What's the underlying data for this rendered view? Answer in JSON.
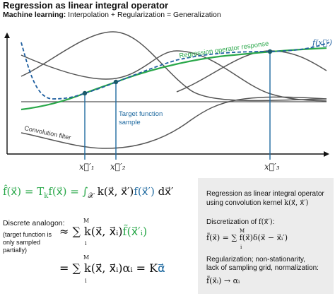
{
  "header": {
    "title": "Regression as linear integral operator",
    "subtitle_bold": "Machine learning:",
    "subtitle_rest": " Interpolation + Regularization = Generalization"
  },
  "plot": {
    "curve_label": "f(x⃗′)",
    "green_label": "Regression operator response",
    "target_label_line1": "Target function",
    "target_label_line2": "sample",
    "kernel_label": "Convolution filter",
    "tick_x1": "x⃗′₁",
    "tick_x2": "x⃗′₂",
    "tick_x3": "x⃗′₃"
  },
  "equations": {
    "eq1": "f̂(x⃗) = T",
    "eq1_sub": "k",
    "eq1_b": "f(x⃗) = ∫",
    "eq1_int_sub": "𝒳",
    "eq1_c": "k(x⃗, x⃗′)",
    "eq1_d": "f(x⃗′)",
    "eq1_e": " dx⃗′",
    "discrete": "Discrete analogon:",
    "note_1": "(target function is",
    "note_2": "only sampled",
    "note_3": "partially)",
    "eq2_a": "≈ ∑",
    "eq2_b": "k(x⃗, x⃗ᵢ)",
    "eq2_c": "f̃(x⃗′ᵢ)",
    "eq3_a": "= ∑",
    "eq3_b": "k(x⃗, x⃗ᵢ)αᵢ = K",
    "eq3_c": "α⃗",
    "sum_top": "M",
    "sum_bottom": "i"
  },
  "box": {
    "line1": "Regression as linear integral operator",
    "line2": "using convolution kernel",
    "line2_math": "k(x⃗, x⃗′)",
    "disc_label": "Discretization of",
    "disc_math": "f(x⃗′)",
    "disc_eq_a": "f̃(x⃗) = ∑",
    "disc_eq_b": "f(x⃗)δ(x⃗ − x⃗ᵢ′)",
    "reg_line1": "Regularization; non-stationarity,",
    "reg_line2": "lack of sampling grid, normalization:",
    "reg_eq": "f̃(x⃗ᵢ) → αᵢ",
    "sum_top": "M",
    "sum_bottom": "i"
  },
  "colors": {
    "green": "#2aa84a",
    "blue": "#1f6aa0",
    "dashed": "#2060a0",
    "gray": "#555555",
    "box": "#ececec"
  }
}
